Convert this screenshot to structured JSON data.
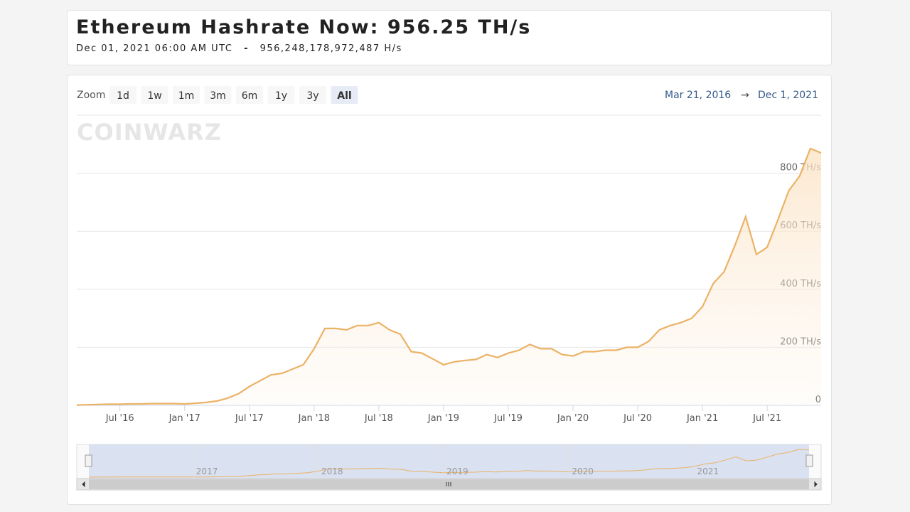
{
  "header": {
    "title": "Ethereum Hashrate Now: 956.25 TH/s",
    "timestamp": "Dec 01, 2021 06:00 AM UTC",
    "separator": "-",
    "raw_rate": "956,248,178,972,487 H/s"
  },
  "toolbar": {
    "zoom_label": "Zoom",
    "buttons": [
      "1d",
      "1w",
      "1m",
      "3m",
      "6m",
      "1y",
      "3y",
      "All"
    ],
    "active": "All",
    "range_from": "Mar 21, 2016",
    "range_arrow": "→",
    "range_to": "Dec 1, 2021"
  },
  "watermark": "COINWARZ",
  "chart_data": {
    "type": "line",
    "color": "#ebb266",
    "grid": true,
    "x": [
      "2016-03",
      "2016-04",
      "2016-05",
      "2016-06",
      "2016-07",
      "2016-08",
      "2016-09",
      "2016-10",
      "2016-11",
      "2016-12",
      "2017-01",
      "2017-02",
      "2017-03",
      "2017-04",
      "2017-05",
      "2017-06",
      "2017-07",
      "2017-08",
      "2017-09",
      "2017-10",
      "2017-11",
      "2017-12",
      "2018-01",
      "2018-02",
      "2018-03",
      "2018-04",
      "2018-05",
      "2018-06",
      "2018-07",
      "2018-08",
      "2018-09",
      "2018-10",
      "2018-11",
      "2018-12",
      "2019-01",
      "2019-02",
      "2019-03",
      "2019-04",
      "2019-05",
      "2019-06",
      "2019-07",
      "2019-08",
      "2019-09",
      "2019-10",
      "2019-11",
      "2019-12",
      "2020-01",
      "2020-02",
      "2020-03",
      "2020-04",
      "2020-05",
      "2020-06",
      "2020-07",
      "2020-08",
      "2020-09",
      "2020-10",
      "2020-11",
      "2020-12",
      "2021-01",
      "2021-02",
      "2021-03",
      "2021-04",
      "2021-05",
      "2021-06",
      "2021-07",
      "2021-08",
      "2021-09",
      "2021-10",
      "2021-11",
      "2021-12"
    ],
    "values": [
      1,
      2,
      3,
      4,
      4,
      5,
      5,
      6,
      6,
      6,
      5,
      7,
      10,
      15,
      25,
      40,
      65,
      85,
      105,
      110,
      125,
      140,
      195,
      265,
      265,
      260,
      275,
      275,
      285,
      260,
      245,
      185,
      180,
      160,
      140,
      150,
      155,
      158,
      175,
      165,
      180,
      190,
      210,
      195,
      195,
      175,
      170,
      185,
      185,
      190,
      190,
      200,
      200,
      220,
      260,
      275,
      285,
      300,
      340,
      420,
      460,
      550,
      650,
      520,
      545,
      640,
      740,
      790,
      885,
      870
    ],
    "xlim": [
      "2016-03",
      "2021-12"
    ],
    "xticks": [
      {
        "value": "2016-07",
        "label": "Jul '16"
      },
      {
        "value": "2017-01",
        "label": "Jan '17"
      },
      {
        "value": "2017-07",
        "label": "Jul '17"
      },
      {
        "value": "2018-01",
        "label": "Jan '18"
      },
      {
        "value": "2018-07",
        "label": "Jul '18"
      },
      {
        "value": "2019-01",
        "label": "Jan '19"
      },
      {
        "value": "2019-07",
        "label": "Jul '19"
      },
      {
        "value": "2020-01",
        "label": "Jan '20"
      },
      {
        "value": "2020-07",
        "label": "Jul '20"
      },
      {
        "value": "2021-01",
        "label": "Jan '21"
      },
      {
        "value": "2021-07",
        "label": "Jul '21"
      }
    ],
    "ylim": [
      0,
      1000
    ],
    "yticks": [
      0,
      {
        "value": 200,
        "label": "200 TH/s"
      },
      {
        "value": 400,
        "label": "400 TH/s"
      },
      {
        "value": 600,
        "label": "600 TH/s"
      },
      {
        "value": 800,
        "label": "800 TH/s"
      }
    ],
    "navigator_ticks": [
      {
        "value": "2017-01",
        "label": "2017"
      },
      {
        "value": "2018-01",
        "label": "2018"
      },
      {
        "value": "2019-01",
        "label": "2019"
      },
      {
        "value": "2020-01",
        "label": "2020"
      },
      {
        "value": "2021-01",
        "label": "2021"
      }
    ]
  }
}
